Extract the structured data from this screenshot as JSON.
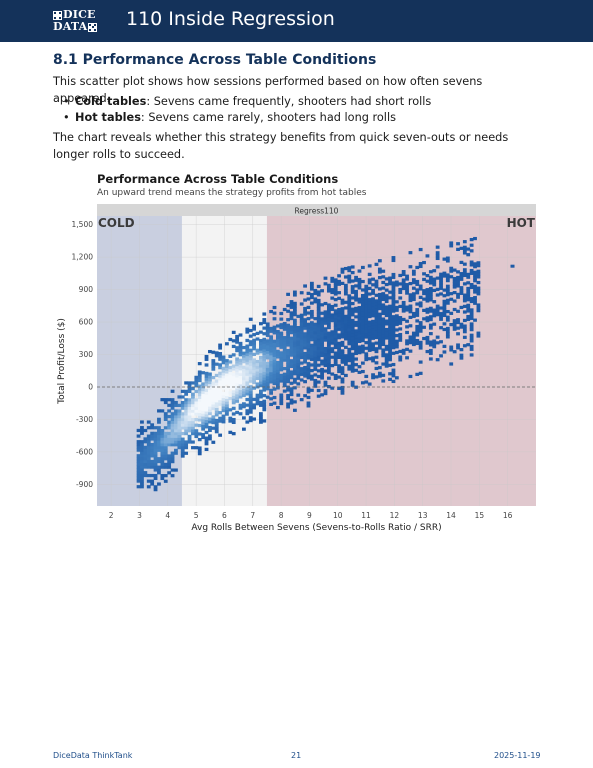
{
  "header": {
    "logo_text_top": "DICE",
    "logo_text_bottom": "DATA",
    "title": "110 Inside Regression"
  },
  "section": {
    "title": "8.1 Performance Across Table Conditions",
    "intro": "This scatter plot shows how sessions performed based on how often sevens appeared.",
    "bullets": [
      {
        "term": "Cold tables",
        "text": ": Sevens came frequently, shooters had short rolls"
      },
      {
        "term": "Hot tables",
        "text": ": Sevens came rarely, shooters had long rolls"
      }
    ],
    "conclusion": "The chart reveals whether this strategy benefits from quick seven-outs or needs longer rolls to succeed."
  },
  "chart_data": {
    "type": "heatmap",
    "title": "Performance Across Table Conditions",
    "subtitle": "An upward trend means the strategy profits from hot tables",
    "facet_label": "Regress110",
    "xlabel": "Avg Rolls Between Sevens (Sevens-to-Rolls Ratio / SRR)",
    "ylabel": "Total Profit/Loss ($)",
    "xlim": [
      1.5,
      17.0
    ],
    "ylim": [
      -1100,
      1580
    ],
    "x_ticks": [
      2,
      3,
      4,
      5,
      6,
      7,
      8,
      9,
      10,
      11,
      12,
      13,
      14,
      15,
      16
    ],
    "y_ticks": [
      -900,
      -600,
      -300,
      0,
      300,
      600,
      900,
      1200,
      1500
    ],
    "y_tick_labels": [
      "-900",
      "-600",
      "-300",
      "0",
      "300",
      "600",
      "900",
      "1,200",
      "1,500"
    ],
    "reference_line_y": 0,
    "regions": [
      {
        "name": "cold",
        "label": "COLD",
        "x_range": [
          1.5,
          4.5
        ],
        "color": "#c9cfe0"
      },
      {
        "name": "neutral",
        "label": "",
        "x_range": [
          4.5,
          7.5
        ],
        "color": "#f3f3f3"
      },
      {
        "name": "hot",
        "label": "HOT",
        "x_range": [
          7.5,
          17.0
        ],
        "color": "#e0c8ce"
      }
    ],
    "density_trend": {
      "description": "dense 2D histogram of sessions; profit rises with avg rolls between sevens",
      "centerline": [
        [
          3.0,
          -700
        ],
        [
          4.0,
          -450
        ],
        [
          5.0,
          -200
        ],
        [
          6.0,
          0
        ],
        [
          7.0,
          150
        ],
        [
          8.0,
          280
        ],
        [
          9.0,
          400
        ],
        [
          10.0,
          500
        ],
        [
          11.0,
          560
        ],
        [
          12.0,
          620
        ],
        [
          13.0,
          700
        ],
        [
          14.0,
          780
        ]
      ],
      "densest_point": [
        5.7,
        -150
      ],
      "outlier_point": [
        16.1,
        1130
      ]
    },
    "colors": {
      "dense": "#f4f8fc",
      "sparse": "#1f5ba7",
      "mid": "#4a8bc8"
    },
    "grid": true
  },
  "footer": {
    "left": "DiceData ThinkTank",
    "center": "21",
    "right": "2025-11-19"
  }
}
